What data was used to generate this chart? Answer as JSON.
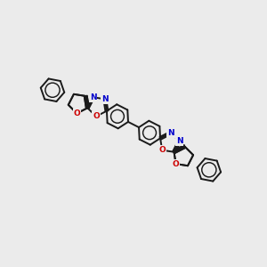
{
  "bg_color": "#ebebeb",
  "bond_color": "#1a1a1a",
  "N_color": "#0000cc",
  "O_color": "#cc0000",
  "lw": 1.4,
  "fs": 6.5,
  "figsize": [
    3.0,
    3.0
  ],
  "dpi": 100,
  "xlim": [
    0,
    300
  ],
  "ylim": [
    0,
    300
  ]
}
